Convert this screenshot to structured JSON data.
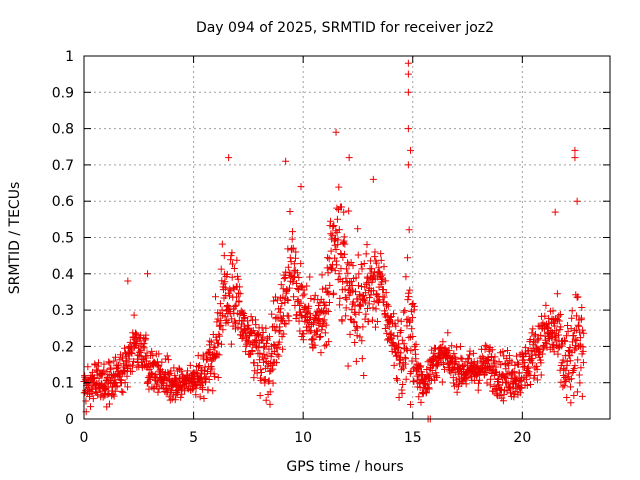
{
  "chart_data": {
    "type": "scatter",
    "title": "Day 094 of 2025, SRMTID for receiver joz2",
    "xlabel": "GPS time / hours",
    "ylabel": "SRMTID / TECUs",
    "xlim": [
      0,
      24
    ],
    "ylim": [
      0,
      1
    ],
    "x_ticks": [
      0,
      5,
      10,
      15,
      20
    ],
    "y_ticks": [
      0,
      0.1,
      0.2,
      0.3,
      0.4,
      0.5,
      0.6,
      0.7,
      0.8,
      0.9,
      1
    ],
    "y_tick_labels": [
      "0",
      "0.1",
      "0.2",
      "0.3",
      "0.4",
      "0.5",
      "0.6",
      "0.7",
      "0.8",
      "0.9",
      "1"
    ],
    "grid": true,
    "marker": "+",
    "color": "#ee0000",
    "series": [
      {
        "name": "SRMTID",
        "trend": [
          [
            0.0,
            0.09
          ],
          [
            0.5,
            0.1
          ],
          [
            1.0,
            0.09
          ],
          [
            1.5,
            0.12
          ],
          [
            2.0,
            0.15
          ],
          [
            2.3,
            0.22
          ],
          [
            2.7,
            0.17
          ],
          [
            3.0,
            0.15
          ],
          [
            3.5,
            0.12
          ],
          [
            4.0,
            0.1
          ],
          [
            4.5,
            0.1
          ],
          [
            5.0,
            0.11
          ],
          [
            5.5,
            0.13
          ],
          [
            6.0,
            0.2
          ],
          [
            6.5,
            0.35
          ],
          [
            7.0,
            0.32
          ],
          [
            7.5,
            0.22
          ],
          [
            8.0,
            0.2
          ],
          [
            8.5,
            0.16
          ],
          [
            9.0,
            0.3
          ],
          [
            9.5,
            0.42
          ],
          [
            10.0,
            0.3
          ],
          [
            10.5,
            0.26
          ],
          [
            11.0,
            0.28
          ],
          [
            11.5,
            0.48
          ],
          [
            12.0,
            0.38
          ],
          [
            12.5,
            0.3
          ],
          [
            13.0,
            0.36
          ],
          [
            13.5,
            0.38
          ],
          [
            14.0,
            0.24
          ],
          [
            14.5,
            0.16
          ],
          [
            14.9,
            0.3
          ],
          [
            15.2,
            0.12
          ],
          [
            15.5,
            0.1
          ],
          [
            16.0,
            0.16
          ],
          [
            16.5,
            0.17
          ],
          [
            17.0,
            0.14
          ],
          [
            17.5,
            0.13
          ],
          [
            18.0,
            0.14
          ],
          [
            18.5,
            0.15
          ],
          [
            19.0,
            0.12
          ],
          [
            19.5,
            0.12
          ],
          [
            20.0,
            0.13
          ],
          [
            20.5,
            0.18
          ],
          [
            21.0,
            0.23
          ],
          [
            21.5,
            0.24
          ],
          [
            22.0,
            0.13
          ],
          [
            22.5,
            0.2
          ],
          [
            22.8,
            0.22
          ]
        ],
        "spread": [
          [
            0.0,
            0.06
          ],
          [
            2.0,
            0.08
          ],
          [
            5.0,
            0.05
          ],
          [
            6.3,
            0.16
          ],
          [
            7.5,
            0.1
          ],
          [
            9.5,
            0.18
          ],
          [
            10.5,
            0.1
          ],
          [
            11.5,
            0.22
          ],
          [
            13.0,
            0.18
          ],
          [
            14.0,
            0.08
          ],
          [
            14.8,
            0.25
          ],
          [
            15.5,
            0.06
          ],
          [
            18.0,
            0.07
          ],
          [
            21.0,
            0.1
          ],
          [
            22.5,
            0.18
          ],
          [
            22.8,
            0.15
          ]
        ],
        "peaks": [
          [
            2.0,
            0.38
          ],
          [
            2.9,
            0.4
          ],
          [
            6.6,
            0.72
          ],
          [
            9.2,
            0.71
          ],
          [
            9.9,
            0.64
          ],
          [
            11.5,
            0.79
          ],
          [
            12.1,
            0.72
          ],
          [
            13.2,
            0.66
          ],
          [
            14.8,
            0.98
          ],
          [
            14.8,
            0.95
          ],
          [
            14.8,
            0.9
          ],
          [
            14.8,
            0.8
          ],
          [
            14.9,
            0.74
          ],
          [
            14.8,
            0.7
          ],
          [
            21.5,
            0.57
          ],
          [
            22.4,
            0.74
          ],
          [
            22.4,
            0.72
          ],
          [
            22.5,
            0.6
          ]
        ],
        "extremes": [
          [
            15.7,
            0.0
          ],
          [
            15.8,
            0.0
          ],
          [
            14.9,
            0.04
          ],
          [
            0.1,
            0.02
          ]
        ]
      }
    ]
  }
}
